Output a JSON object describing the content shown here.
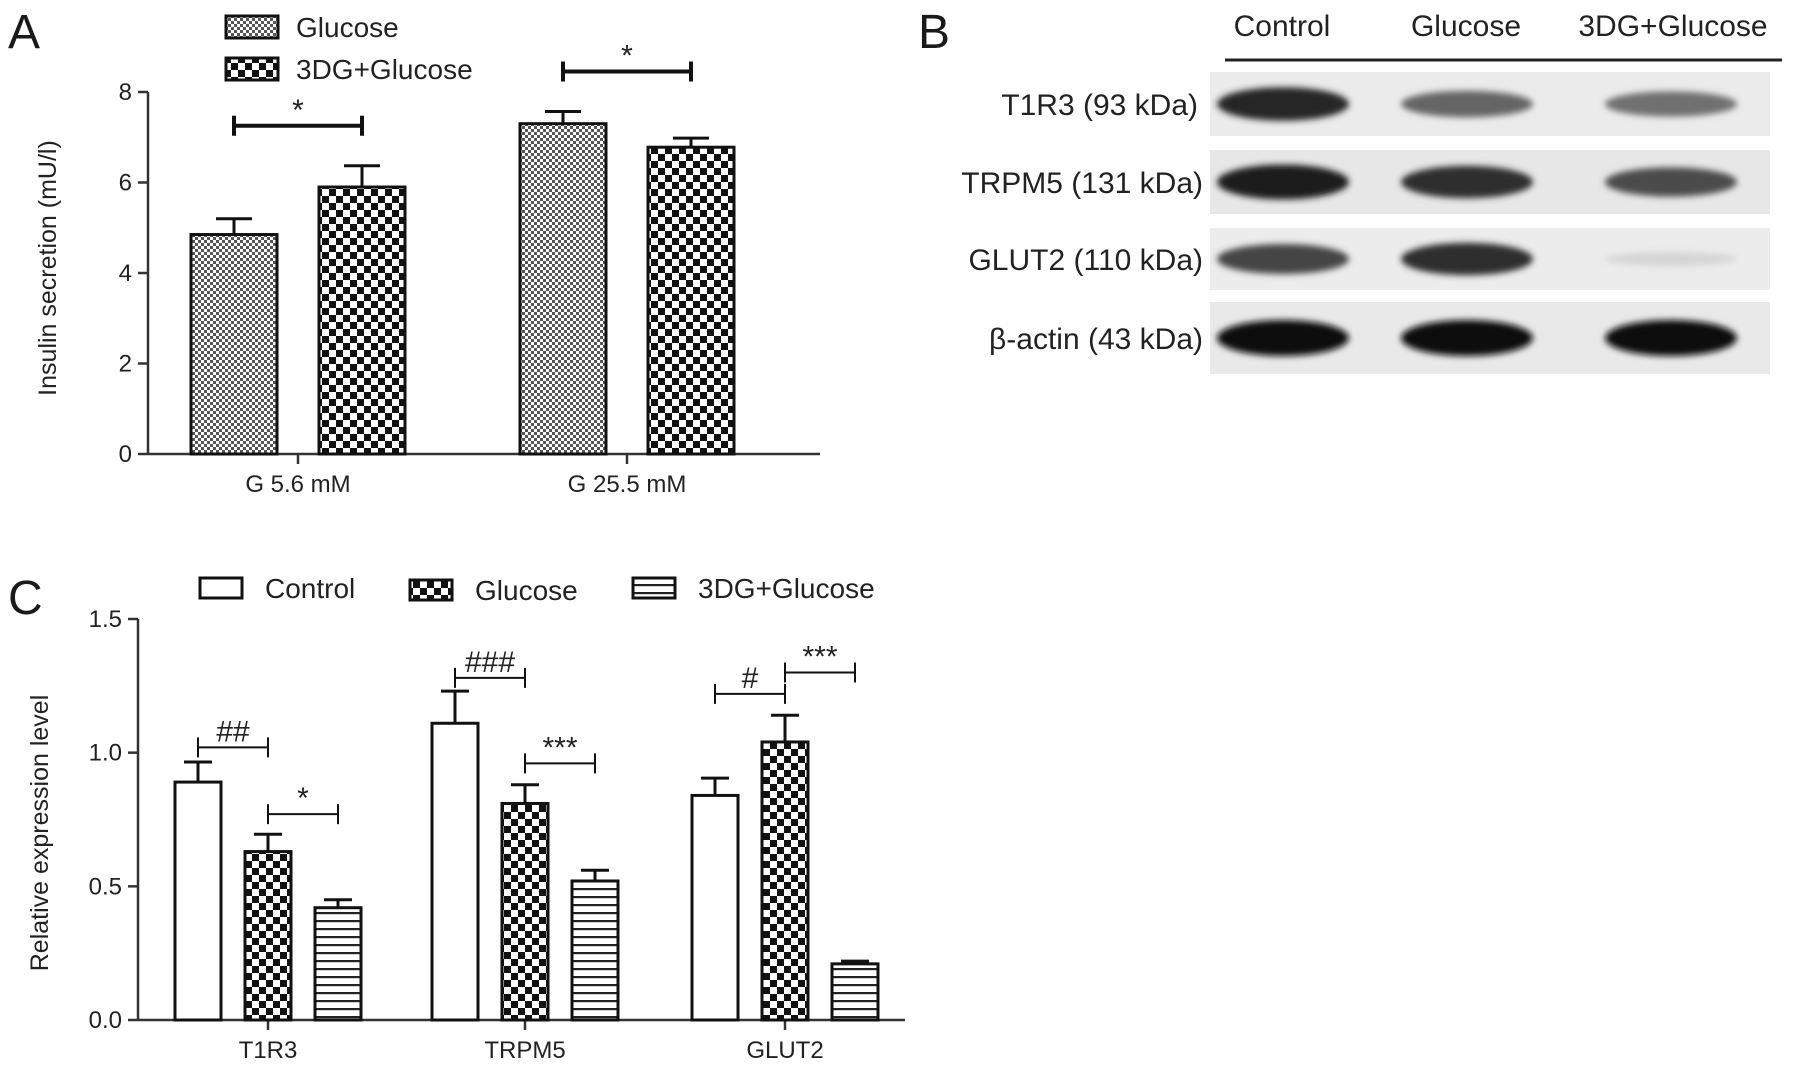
{
  "panels": {
    "a": "A",
    "b": "B",
    "c": "C"
  },
  "chart_data": [
    {
      "type": "bar",
      "panel": "A",
      "categories": [
        "G 5.6 mM",
        "G 25.5 mM"
      ],
      "series": [
        {
          "name": "Glucose",
          "values": [
            4.85,
            7.3
          ],
          "errors": [
            0.35,
            0.27
          ],
          "pattern": "fine-check"
        },
        {
          "name": "3DG+Glucose",
          "values": [
            5.9,
            6.78
          ],
          "errors": [
            0.47,
            0.2
          ],
          "pattern": "coarse-check"
        }
      ],
      "ylabel": "Insulin secretion (mU/l)",
      "ylim": [
        0,
        8
      ],
      "yticks": [
        "0",
        "2",
        "4",
        "6",
        "8"
      ],
      "significance": [
        {
          "category": 0,
          "from_series": 0,
          "to_series": 1,
          "label": "*"
        },
        {
          "category": 1,
          "from_series": 0,
          "to_series": 1,
          "label": "*"
        }
      ],
      "legend_position": "top",
      "grid": false
    },
    {
      "type": "bar",
      "panel": "C",
      "categories": [
        "T1R3",
        "TRPM5",
        "GLUT2"
      ],
      "series": [
        {
          "name": "Control",
          "values": [
            0.89,
            1.11,
            0.84
          ],
          "errors": [
            0.075,
            0.12,
            0.065
          ],
          "pattern": "plain"
        },
        {
          "name": "Glucose",
          "values": [
            0.63,
            0.81,
            1.04
          ],
          "errors": [
            0.065,
            0.07,
            0.1
          ],
          "pattern": "coarse-check"
        },
        {
          "name": "3DG+Glucose",
          "values": [
            0.42,
            0.52,
            0.21
          ],
          "errors": [
            0.03,
            0.04,
            0.01
          ],
          "pattern": "hstripe"
        }
      ],
      "ylabel": "Relative expression level",
      "ylim": [
        0,
        1.5
      ],
      "yticks": [
        "0.0",
        "0.5",
        "1.0",
        "1.5"
      ],
      "significance": [
        {
          "category": 0,
          "from_series": 0,
          "to_series": 1,
          "label": "##",
          "level": 1.02
        },
        {
          "category": 0,
          "from_series": 1,
          "to_series": 2,
          "label": "*",
          "level": 0.77
        },
        {
          "category": 1,
          "from_series": 0,
          "to_series": 1,
          "label": "###",
          "level": 1.28
        },
        {
          "category": 1,
          "from_series": 1,
          "to_series": 2,
          "label": "***",
          "level": 0.96
        },
        {
          "category": 2,
          "from_series": 0,
          "to_series": 1,
          "label": "#",
          "level": 1.22
        },
        {
          "category": 2,
          "from_series": 1,
          "to_series": 2,
          "label": "***",
          "level": 1.3
        }
      ],
      "legend_position": "top",
      "grid": false
    }
  ],
  "blot": {
    "lanes": [
      "Control",
      "Glucose",
      "3DG+Glucose"
    ],
    "proteins": [
      {
        "label": "T1R3 (93 kDa)",
        "intensities": [
          0.9,
          0.6,
          0.55
        ]
      },
      {
        "label": "TRPM5 (131 kDa)",
        "intensities": [
          0.95,
          0.85,
          0.72
        ]
      },
      {
        "label": "GLUT2 (110 kDa)",
        "intensities": [
          0.75,
          0.85,
          0.08
        ]
      },
      {
        "label": "β-actin (43 kDa)",
        "intensities": [
          1.0,
          1.0,
          1.0
        ]
      }
    ]
  }
}
